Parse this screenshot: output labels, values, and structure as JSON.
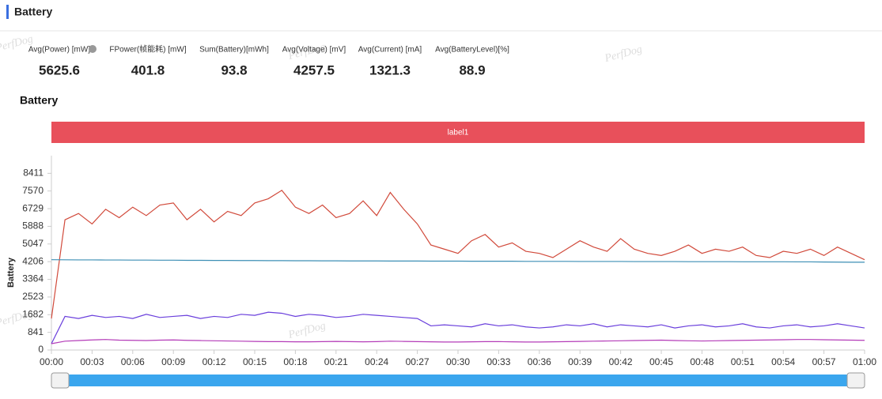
{
  "header": {
    "title": "Battery"
  },
  "watermark": "PerfDog",
  "stats": [
    {
      "label": "Avg(Power) [mW]",
      "value": 5625.6
    },
    {
      "label": "FPower(帧能耗) [mW]",
      "value": 401.8
    },
    {
      "label": "Sum(Battery)[mWh]",
      "value": 93.8
    },
    {
      "label": "Avg(Voltage) [mV]",
      "value": 4257.5
    },
    {
      "label": "Avg(Current) [mA]",
      "value": 1321.3
    },
    {
      "label": "Avg(BatteryLevel)[%]",
      "value": 88.9
    }
  ],
  "chart_data": {
    "type": "line",
    "title": "Battery",
    "band_label": "label1",
    "y_label": "Battery",
    "ylim": [
      0,
      9252
    ],
    "yticks": [
      0,
      841,
      1682,
      2523,
      3364,
      4206,
      5047,
      5888,
      6729,
      7570,
      8411
    ],
    "xlim": [
      0,
      60
    ],
    "xticks": [
      {
        "value": 0,
        "label": "00:00"
      },
      {
        "value": 3,
        "label": "00:03"
      },
      {
        "value": 6,
        "label": "00:06"
      },
      {
        "value": 9,
        "label": "00:09"
      },
      {
        "value": 12,
        "label": "00:12"
      },
      {
        "value": 15,
        "label": "00:15"
      },
      {
        "value": 18,
        "label": "00:18"
      },
      {
        "value": 21,
        "label": "00:21"
      },
      {
        "value": 24,
        "label": "00:24"
      },
      {
        "value": 27,
        "label": "00:27"
      },
      {
        "value": 30,
        "label": "00:30"
      },
      {
        "value": 33,
        "label": "00:33"
      },
      {
        "value": 36,
        "label": "00:36"
      },
      {
        "value": 39,
        "label": "00:39"
      },
      {
        "value": 42,
        "label": "00:42"
      },
      {
        "value": 45,
        "label": "00:45"
      },
      {
        "value": 48,
        "label": "00:48"
      },
      {
        "value": 51,
        "label": "00:51"
      },
      {
        "value": 54,
        "label": "00:54"
      },
      {
        "value": 57,
        "label": "00:57"
      },
      {
        "value": 60,
        "label": "01:00"
      }
    ],
    "x": [
      0,
      1,
      2,
      3,
      4,
      5,
      6,
      7,
      8,
      9,
      10,
      11,
      12,
      13,
      14,
      15,
      16,
      17,
      18,
      19,
      20,
      21,
      22,
      23,
      24,
      25,
      26,
      27,
      28,
      29,
      30,
      31,
      32,
      33,
      34,
      35,
      36,
      37,
      38,
      39,
      40,
      41,
      42,
      43,
      44,
      45,
      46,
      47,
      48,
      49,
      50,
      51,
      52,
      53,
      54,
      55,
      56,
      57,
      58,
      59,
      60
    ],
    "series": [
      {
        "color": "#d14a3b",
        "values": [
          1500,
          6200,
          6500,
          6000,
          6700,
          6300,
          6800,
          6400,
          6900,
          7000,
          6200,
          6700,
          6100,
          6600,
          6400,
          7000,
          7200,
          7600,
          6800,
          6500,
          6900,
          6300,
          6500,
          7100,
          6400,
          7500,
          6700,
          6000,
          5000,
          4800,
          4600,
          5200,
          5500,
          4900,
          5100,
          4700,
          4600,
          4400,
          4800,
          5200,
          4900,
          4700,
          5300,
          4800,
          4600,
          4500,
          4700,
          5000,
          4600,
          4800,
          4700,
          4900,
          4500,
          4400,
          4700,
          4600,
          4800,
          4500,
          4900,
          4600,
          4300
        ]
      },
      {
        "color": "#3d8fb5",
        "values": [
          4300,
          4295,
          4290,
          4290,
          4285,
          4285,
          4280,
          4280,
          4275,
          4275,
          4270,
          4270,
          4265,
          4265,
          4260,
          4260,
          4255,
          4255,
          4250,
          4250,
          4245,
          4245,
          4240,
          4240,
          4240,
          4235,
          4235,
          4235,
          4230,
          4230,
          4230,
          4225,
          4225,
          4225,
          4225,
          4220,
          4220,
          4220,
          4220,
          4215,
          4215,
          4215,
          4215,
          4210,
          4210,
          4210,
          4210,
          4205,
          4205,
          4205,
          4205,
          4200,
          4200,
          4200,
          4200,
          4195,
          4195,
          4190,
          4185,
          4180,
          4180
        ]
      },
      {
        "color": "#6a3fdc",
        "values": [
          300,
          1600,
          1500,
          1650,
          1550,
          1600,
          1500,
          1700,
          1550,
          1600,
          1650,
          1500,
          1600,
          1550,
          1700,
          1650,
          1800,
          1750,
          1600,
          1700,
          1650,
          1550,
          1600,
          1700,
          1650,
          1600,
          1550,
          1500,
          1150,
          1200,
          1150,
          1100,
          1250,
          1150,
          1200,
          1100,
          1050,
          1100,
          1200,
          1150,
          1250,
          1100,
          1200,
          1150,
          1100,
          1200,
          1050,
          1150,
          1200,
          1100,
          1150,
          1250,
          1100,
          1050,
          1150,
          1200,
          1100,
          1150,
          1250,
          1150,
          1050
        ]
      },
      {
        "color": "#b43cb8",
        "values": [
          300,
          420,
          450,
          480,
          500,
          470,
          460,
          450,
          470,
          480,
          460,
          450,
          440,
          430,
          420,
          410,
          400,
          400,
          390,
          390,
          400,
          410,
          400,
          390,
          400,
          420,
          410,
          400,
          390,
          380,
          380,
          390,
          400,
          400,
          390,
          380,
          380,
          390,
          400,
          410,
          420,
          430,
          440,
          450,
          460,
          470,
          450,
          440,
          430,
          440,
          450,
          460,
          470,
          480,
          490,
          500,
          500,
          490,
          480,
          470,
          460
        ]
      }
    ]
  }
}
